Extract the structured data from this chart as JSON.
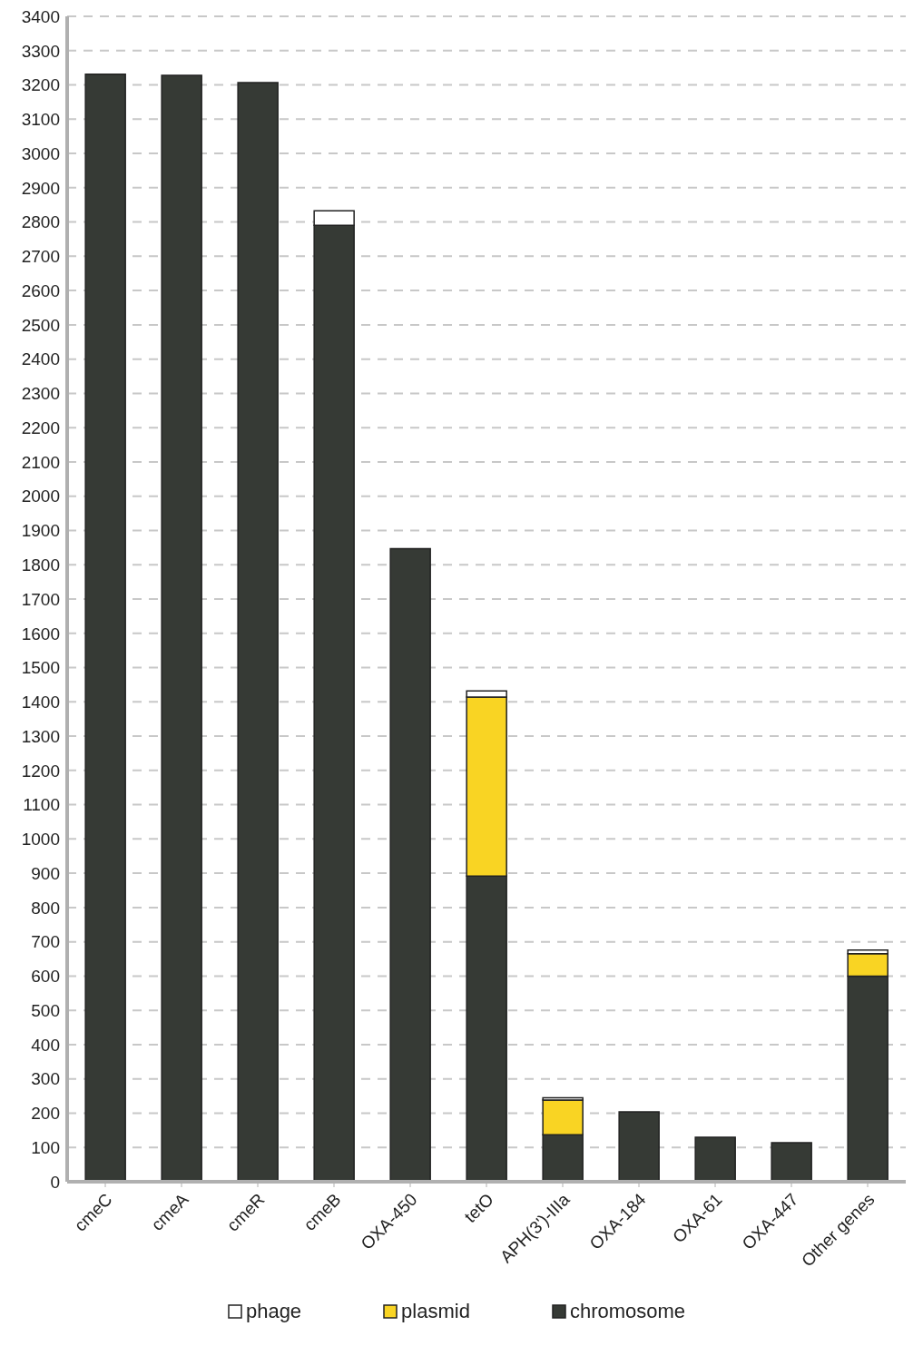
{
  "chart_data": {
    "type": "bar",
    "stacked": true,
    "categories": [
      "cmeC",
      "cmeA",
      "cmeR",
      "cmeB",
      "OXA-450",
      "tetO",
      "APH(3')-IIIa",
      "OXA-184",
      "OXA-61",
      "OXA-447",
      "Other genes"
    ],
    "series": [
      {
        "name": "chromosome",
        "color": "#363a35",
        "values": [
          3231,
          3228,
          3207,
          2790,
          1847,
          892,
          137,
          204,
          130,
          114,
          600
        ]
      },
      {
        "name": "plasmid",
        "color": "#f9d423",
        "values": [
          0,
          0,
          0,
          0,
          0,
          522,
          101,
          0,
          0,
          0,
          65
        ]
      },
      {
        "name": "phage",
        "color": "#ffffff",
        "values": [
          0,
          0,
          0,
          43,
          0,
          18,
          7,
          0,
          0,
          0,
          11
        ]
      }
    ],
    "ylim": [
      0,
      3400
    ],
    "yticks": [
      0,
      100,
      200,
      300,
      400,
      500,
      600,
      700,
      800,
      900,
      1000,
      1100,
      1200,
      1300,
      1400,
      1500,
      1600,
      1700,
      1800,
      1900,
      2000,
      2100,
      2200,
      2300,
      2400,
      2500,
      2600,
      2700,
      2800,
      2900,
      3000,
      3100,
      3200,
      3300,
      3400
    ],
    "grid": "y",
    "legend": "bottom"
  }
}
